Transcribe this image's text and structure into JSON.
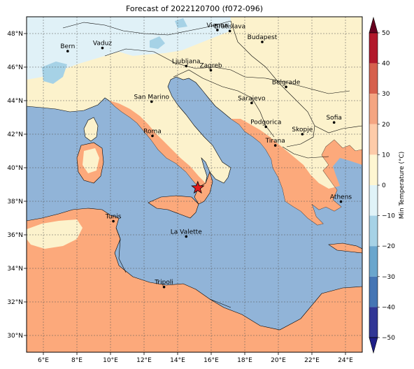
{
  "title": "Forecast of 2022120700 (f072-096)",
  "map": {
    "lon_range": [
      5.0,
      25.0
    ],
    "lat_range": [
      29.0,
      49.0
    ],
    "x_ticks": [
      "6°E",
      "8°E",
      "10°E",
      "12°E",
      "14°E",
      "16°E",
      "18°E",
      "20°E",
      "22°E",
      "24°E"
    ],
    "x_tick_values": [
      6,
      8,
      10,
      12,
      14,
      16,
      18,
      20,
      22,
      24
    ],
    "y_ticks": [
      "48°N",
      "46°N",
      "44°N",
      "42°N",
      "40°N",
      "38°N",
      "36°N",
      "34°N",
      "32°N",
      "30°N"
    ],
    "y_tick_values": [
      48,
      46,
      44,
      42,
      40,
      38,
      36,
      34,
      32,
      30
    ],
    "gridlines": true,
    "colors": {
      "sea": "#91b4d8",
      "land_warm": "#fcf2cc",
      "land_hot": "#fca97b",
      "alps_cold": "#e0f1f7",
      "alps_colder": "#a6d2e6",
      "border": "#000000",
      "star": "#e31a1c"
    },
    "cities": [
      {
        "name": "Bern",
        "lon": 7.45,
        "lat": 46.95
      },
      {
        "name": "Vaduz",
        "lon": 9.52,
        "lat": 47.14
      },
      {
        "name": "Vienna",
        "lon": 16.37,
        "lat": 48.21
      },
      {
        "name": "Bratislava",
        "lon": 17.11,
        "lat": 48.15
      },
      {
        "name": "Budapest",
        "lon": 19.04,
        "lat": 47.5
      },
      {
        "name": "Ljubljana",
        "lon": 14.51,
        "lat": 46.06
      },
      {
        "name": "Zagreb",
        "lon": 15.98,
        "lat": 45.81
      },
      {
        "name": "Belgrade",
        "lon": 20.46,
        "lat": 44.82
      },
      {
        "name": "San Marino",
        "lon": 12.45,
        "lat": 43.94
      },
      {
        "name": "Sarajevo",
        "lon": 18.41,
        "lat": 43.86
      },
      {
        "name": "Sofia",
        "lon": 23.32,
        "lat": 42.7
      },
      {
        "name": "Podgorica",
        "lon": 19.26,
        "lat": 42.44
      },
      {
        "name": "Skopje",
        "lon": 21.43,
        "lat": 42.0
      },
      {
        "name": "Roma",
        "lon": 12.5,
        "lat": 41.9
      },
      {
        "name": "Tirana",
        "lon": 19.82,
        "lat": 41.33
      },
      {
        "name": "Athens",
        "lon": 23.73,
        "lat": 37.98
      },
      {
        "name": "Tunis",
        "lon": 10.17,
        "lat": 36.81
      },
      {
        "name": "La Valette",
        "lon": 14.51,
        "lat": 35.9
      },
      {
        "name": "Tripoli",
        "lon": 13.19,
        "lat": 32.89
      }
    ],
    "marker": {
      "symbol": "star-icon",
      "lon": 15.2,
      "lat": 38.8
    }
  },
  "colorbar": {
    "label": "Min Temperature (°C)",
    "ticks": [
      "50",
      "40",
      "30",
      "20",
      "10",
      "0",
      "−10",
      "−20",
      "−30",
      "−40",
      "−50"
    ],
    "tick_values": [
      50,
      40,
      30,
      20,
      10,
      0,
      -10,
      -20,
      -30,
      -40,
      -50
    ],
    "colors": [
      "#67001f",
      "#b2182b",
      "#d6604d",
      "#f4a582",
      "#fdcba9",
      "#fef6d2",
      "#e0f3f8",
      "#a6d2e6",
      "#6aa6cd",
      "#4575b4",
      "#313695",
      "#1f1f88"
    ]
  }
}
